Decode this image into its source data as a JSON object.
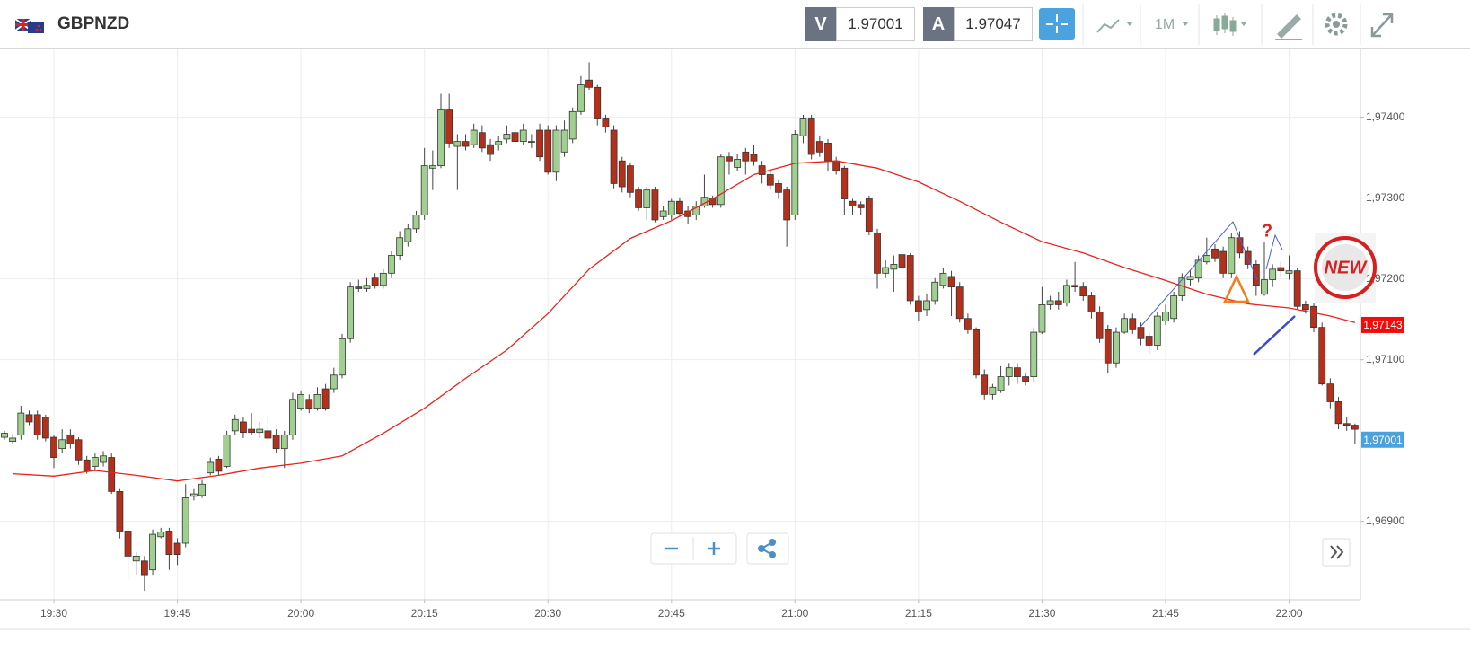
{
  "header": {
    "symbol": "GBPNZD",
    "sell_label": "V",
    "sell_price": "1.97001",
    "buy_label": "A",
    "buy_price": "1.97047",
    "timeframe": "1M"
  },
  "chart_data": {
    "type": "candlestick",
    "up_color": "#9fd08f",
    "down_color": "#b5301a",
    "categories": [
      "19:24",
      "19:25",
      "19:26",
      "19:27",
      "19:28",
      "19:29",
      "19:30",
      "19:31",
      "19:32",
      "19:33",
      "19:34",
      "19:35",
      "19:36",
      "19:37",
      "19:38",
      "19:39",
      "19:40",
      "19:41",
      "19:42",
      "19:43",
      "19:44",
      "19:45",
      "19:46",
      "19:47",
      "19:48",
      "19:49",
      "19:50",
      "19:51",
      "19:52",
      "19:53",
      "19:54",
      "19:55",
      "19:56",
      "19:57",
      "19:58",
      "19:59",
      "20:00",
      "20:01",
      "20:02",
      "20:03",
      "20:04",
      "20:05",
      "20:06",
      "20:07",
      "20:08",
      "20:09",
      "20:10",
      "20:11",
      "20:12",
      "20:13",
      "20:14",
      "20:15",
      "20:16",
      "20:17",
      "20:18",
      "20:19",
      "20:20",
      "20:21",
      "20:22",
      "20:23",
      "20:24",
      "20:25",
      "20:26",
      "20:27",
      "20:28",
      "20:29",
      "20:30",
      "20:31",
      "20:32",
      "20:33",
      "20:34",
      "20:35",
      "20:36",
      "20:37",
      "20:38",
      "20:39",
      "20:40",
      "20:41",
      "20:42",
      "20:43",
      "20:44",
      "20:45",
      "20:46",
      "20:47",
      "20:48",
      "20:49",
      "20:50",
      "20:51",
      "20:52",
      "20:53",
      "20:54",
      "20:55",
      "20:56",
      "20:57",
      "20:58",
      "20:59",
      "21:00",
      "21:01",
      "21:02",
      "21:03",
      "21:04",
      "21:05",
      "21:06",
      "21:07",
      "21:08",
      "21:09",
      "21:10",
      "21:11",
      "21:12",
      "21:13",
      "21:14",
      "21:15",
      "21:16",
      "21:17",
      "21:18",
      "21:19",
      "21:20",
      "21:21",
      "21:22",
      "21:23",
      "21:24",
      "21:25",
      "21:26",
      "21:27",
      "21:28",
      "21:29",
      "21:30",
      "21:31",
      "21:32",
      "21:33",
      "21:34",
      "21:35",
      "21:36",
      "21:37",
      "21:38",
      "21:39",
      "21:40",
      "21:41",
      "21:42",
      "21:43",
      "21:44",
      "21:45",
      "21:46",
      "21:47",
      "21:48",
      "21:49",
      "21:50",
      "21:51",
      "21:52",
      "21:53",
      "21:54",
      "21:55",
      "21:56",
      "21:57",
      "21:58",
      "21:59",
      "22:00",
      "22:01",
      "22:02",
      "22:03",
      "22:04",
      "22:05",
      "22:06",
      "22:07",
      "22:08"
    ],
    "candles": [
      [
        1.97004,
        1.97012,
        1.97001,
        1.97009
      ],
      [
        1.96999,
        1.97008,
        1.96996,
        1.97003
      ],
      [
        1.97007,
        1.97043,
        1.97001,
        1.97034
      ],
      [
        1.97032,
        1.97037,
        1.97019,
        1.97023
      ],
      [
        1.97032,
        1.97037,
        1.97001,
        1.97007
      ],
      [
        1.97029,
        1.97032,
        1.96999,
        1.97003
      ],
      [
        1.97004,
        1.97007,
        1.96966,
        1.96979
      ],
      [
        1.9699,
        1.97014,
        1.96984,
        1.97001
      ],
      [
        1.97007,
        1.97014,
        1.9699,
        1.96996
      ],
      [
        1.97001,
        1.97004,
        1.9697,
        1.96976
      ],
      [
        1.96976,
        1.96981,
        1.96959,
        1.96962
      ],
      [
        1.96968,
        1.96984,
        1.96962,
        1.96979
      ],
      [
        1.96973,
        1.96987,
        1.96968,
        1.96981
      ],
      [
        1.96979,
        1.96984,
        1.96934,
        1.96937
      ],
      [
        1.96937,
        1.9694,
        1.96879,
        1.96888
      ],
      [
        1.96888,
        1.96892,
        1.96829,
        1.96857
      ],
      [
        1.96851,
        1.96862,
        1.96834,
        1.96857
      ],
      [
        1.96851,
        1.96857,
        1.96814,
        1.96834
      ],
      [
        1.9684,
        1.9689,
        1.96834,
        1.96884
      ],
      [
        1.96881,
        1.96892,
        1.96879,
        1.96887
      ],
      [
        1.96888,
        1.96892,
        1.9684,
        1.96859
      ],
      [
        1.96873,
        1.96879,
        1.96846,
        1.96859
      ],
      [
        1.96873,
        1.96946,
        1.96868,
        1.96929
      ],
      [
        1.96931,
        1.9694,
        1.96926,
        1.96934
      ],
      [
        1.96932,
        1.96951,
        1.96929,
        1.96946
      ],
      [
        1.9696,
        1.96979,
        1.96957,
        1.96973
      ],
      [
        1.96977,
        1.96981,
        1.96957,
        1.96962
      ],
      [
        1.96968,
        1.97012,
        1.96966,
        1.97007
      ],
      [
        1.97012,
        1.97032,
        1.97007,
        1.97026
      ],
      [
        1.97023,
        1.97029,
        1.97003,
        1.9701
      ],
      [
        1.97014,
        1.97034,
        1.97007,
        1.9701
      ],
      [
        1.9701,
        1.97023,
        1.97003,
        1.97014
      ],
      [
        1.97012,
        1.97032,
        1.96999,
        1.97003
      ],
      [
        1.97007,
        1.97014,
        1.96984,
        1.9699
      ],
      [
        1.9699,
        1.97012,
        1.96966,
        1.97007
      ],
      [
        1.97007,
        1.97059,
        1.97001,
        1.97051
      ],
      [
        1.9704,
        1.97062,
        1.97037,
        1.97057
      ],
      [
        1.97051,
        1.97057,
        1.97034,
        1.9704
      ],
      [
        1.9704,
        1.97066,
        1.97037,
        1.97057
      ],
      [
        1.97064,
        1.9707,
        1.97037,
        1.9704
      ],
      [
        1.97064,
        1.9709,
        1.97059,
        1.97081
      ],
      [
        1.97081,
        1.97132,
        1.97077,
        1.97126
      ],
      [
        1.97126,
        1.97196,
        1.97121,
        1.9719
      ],
      [
        1.9719,
        1.97199,
        1.97184,
        1.97188
      ],
      [
        1.97188,
        1.97201,
        1.97184,
        1.97192
      ],
      [
        1.97201,
        1.97207,
        1.97188,
        1.97192
      ],
      [
        1.97192,
        1.97212,
        1.97188,
        1.97207
      ],
      [
        1.97207,
        1.97234,
        1.97201,
        1.97229
      ],
      [
        1.97229,
        1.97259,
        1.97223,
        1.97251
      ],
      [
        1.97246,
        1.97268,
        1.9724,
        1.97262
      ],
      [
        1.97262,
        1.97284,
        1.97257,
        1.97279
      ],
      [
        1.97279,
        1.97362,
        1.97273,
        1.9734
      ],
      [
        1.97337,
        1.97359,
        1.9731,
        1.9734
      ],
      [
        1.9734,
        1.97429,
        1.97337,
        1.9741
      ],
      [
        1.9741,
        1.97429,
        1.97362,
        1.97368
      ],
      [
        1.97364,
        1.97379,
        1.9731,
        1.9737
      ],
      [
        1.9737,
        1.97379,
        1.97359,
        1.97364
      ],
      [
        1.97366,
        1.97392,
        1.97362,
        1.97384
      ],
      [
        1.97381,
        1.9739,
        1.97357,
        1.97362
      ],
      [
        1.97366,
        1.97373,
        1.97346,
        1.97354
      ],
      [
        1.97366,
        1.97377,
        1.97359,
        1.9737
      ],
      [
        1.97373,
        1.9739,
        1.97368,
        1.97379
      ],
      [
        1.97381,
        1.9739,
        1.97366,
        1.9737
      ],
      [
        1.9737,
        1.97392,
        1.97366,
        1.97384
      ],
      [
        1.9737,
        1.97379,
        1.97362,
        1.9737
      ],
      [
        1.97384,
        1.97392,
        1.97346,
        1.97351
      ],
      [
        1.97384,
        1.9739,
        1.97329,
        1.97332
      ],
      [
        1.97332,
        1.9739,
        1.97321,
        1.97384
      ],
      [
        1.97357,
        1.97396,
        1.97351,
        1.97384
      ],
      [
        1.97373,
        1.97412,
        1.97368,
        1.97407
      ],
      [
        1.97407,
        1.97451,
        1.97403,
        1.9744
      ],
      [
        1.97446,
        1.97468,
        1.97434,
        1.97437
      ],
      [
        1.97437,
        1.9744,
        1.9739,
        1.97399
      ],
      [
        1.97399,
        1.97403,
        1.97381,
        1.97388
      ],
      [
        1.97384,
        1.9739,
        1.97312,
        1.97318
      ],
      [
        1.97346,
        1.97351,
        1.97307,
        1.97314
      ],
      [
        1.9734,
        1.97343,
        1.97301,
        1.97307
      ],
      [
        1.9731,
        1.97314,
        1.97284,
        1.97288
      ],
      [
        1.97288,
        1.97314,
        1.97273,
        1.9731
      ],
      [
        1.9731,
        1.97314,
        1.9727,
        1.97273
      ],
      [
        1.97277,
        1.9729,
        1.97273,
        1.97284
      ],
      [
        1.97279,
        1.97299,
        1.97273,
        1.97296
      ],
      [
        1.97296,
        1.97301,
        1.97277,
        1.97281
      ],
      [
        1.97284,
        1.9729,
        1.97268,
        1.97277
      ],
      [
        1.97279,
        1.97296,
        1.97273,
        1.9729
      ],
      [
        1.9729,
        1.97329,
        1.97288,
        1.97301
      ],
      [
        1.97299,
        1.97303,
        1.97288,
        1.97292
      ],
      [
        1.97292,
        1.97354,
        1.97288,
        1.97351
      ],
      [
        1.97351,
        1.97357,
        1.97329,
        1.97346
      ],
      [
        1.97338,
        1.97354,
        1.97334,
        1.97348
      ],
      [
        1.97357,
        1.97362,
        1.97329,
        1.97346
      ],
      [
        1.97354,
        1.97366,
        1.9734,
        1.97346
      ],
      [
        1.9734,
        1.97346,
        1.97318,
        1.97329
      ],
      [
        1.97329,
        1.97334,
        1.9731,
        1.97316
      ],
      [
        1.97318,
        1.97323,
        1.97299,
        1.97307
      ],
      [
        1.9731,
        1.97314,
        1.9724,
        1.97273
      ],
      [
        1.97279,
        1.97384,
        1.97273,
        1.97379
      ],
      [
        1.97377,
        1.97403,
        1.97368,
        1.97399
      ],
      [
        1.97399,
        1.97403,
        1.97348,
        1.97354
      ],
      [
        1.9737,
        1.97377,
        1.97351,
        1.97357
      ],
      [
        1.97368,
        1.97373,
        1.97334,
        1.97346
      ],
      [
        1.97346,
        1.97351,
        1.97329,
        1.97334
      ],
      [
        1.97337,
        1.9734,
        1.97279,
        1.97299
      ],
      [
        1.97296,
        1.97299,
        1.97279,
        1.9729
      ],
      [
        1.97292,
        1.97296,
        1.97279,
        1.97288
      ],
      [
        1.97299,
        1.97303,
        1.97254,
        1.97259
      ],
      [
        1.97257,
        1.97262,
        1.97188,
        1.97207
      ],
      [
        1.97207,
        1.97223,
        1.97201,
        1.97214
      ],
      [
        1.97212,
        1.97229,
        1.97184,
        1.97218
      ],
      [
        1.9723,
        1.97234,
        1.97207,
        1.97214
      ],
      [
        1.97229,
        1.97232,
        1.97168,
        1.97173
      ],
      [
        1.97173,
        1.97179,
        1.97148,
        1.97159
      ],
      [
        1.97162,
        1.97182,
        1.97154,
        1.97173
      ],
      [
        1.97173,
        1.97201,
        1.97168,
        1.97196
      ],
      [
        1.97192,
        1.97214,
        1.97188,
        1.97207
      ],
      [
        1.97203,
        1.9721,
        1.97154,
        1.9719
      ],
      [
        1.9719,
        1.97196,
        1.97146,
        1.97151
      ],
      [
        1.97151,
        1.97157,
        1.97132,
        1.97137
      ],
      [
        1.97137,
        1.9714,
        1.97077,
        1.97081
      ],
      [
        1.97081,
        1.97088,
        1.97051,
        1.97057
      ],
      [
        1.97057,
        1.9707,
        1.97051,
        1.97066
      ],
      [
        1.97062,
        1.97092,
        1.97059,
        1.97079
      ],
      [
        1.97079,
        1.97096,
        1.97068,
        1.9709
      ],
      [
        1.9709,
        1.97096,
        1.9707,
        1.97079
      ],
      [
        1.97079,
        1.97084,
        1.97068,
        1.97073
      ],
      [
        1.97079,
        1.9714,
        1.97073,
        1.97134
      ],
      [
        1.97134,
        1.9719,
        1.97132,
        1.97168
      ],
      [
        1.97168,
        1.97179,
        1.97162,
        1.97173
      ],
      [
        1.97173,
        1.97184,
        1.97162,
        1.97168
      ],
      [
        1.9717,
        1.97199,
        1.97166,
        1.97192
      ],
      [
        1.97192,
        1.97221,
        1.97184,
        1.9719
      ],
      [
        1.9719,
        1.97196,
        1.97173,
        1.97179
      ],
      [
        1.97179,
        1.97184,
        1.97151,
        1.97159
      ],
      [
        1.97159,
        1.97166,
        1.97121,
        1.97126
      ],
      [
        1.97137,
        1.97143,
        1.97084,
        1.97096
      ],
      [
        1.97096,
        1.9714,
        1.9709,
        1.97134
      ],
      [
        1.97134,
        1.97157,
        1.97132,
        1.97151
      ],
      [
        1.97151,
        1.97157,
        1.97132,
        1.97137
      ],
      [
        1.9714,
        1.97146,
        1.97118,
        1.97126
      ],
      [
        1.97129,
        1.97134,
        1.97107,
        1.97118
      ],
      [
        1.97118,
        1.97159,
        1.97112,
        1.97154
      ],
      [
        1.97148,
        1.97168,
        1.97143,
        1.97159
      ],
      [
        1.97151,
        1.97184,
        1.97146,
        1.97179
      ],
      [
        1.97179,
        1.97207,
        1.97173,
        1.97201
      ],
      [
        1.97199,
        1.9721,
        1.97192,
        1.97203
      ],
      [
        1.97201,
        1.97229,
        1.97196,
        1.97223
      ],
      [
        1.97221,
        1.97251,
        1.97218,
        1.97229
      ],
      [
        1.97237,
        1.97243,
        1.97221,
        1.97226
      ],
      [
        1.97234,
        1.9724,
        1.97201,
        1.97207
      ],
      [
        1.97207,
        1.97257,
        1.97201,
        1.97251
      ],
      [
        1.97251,
        1.97259,
        1.97226,
        1.97232
      ],
      [
        1.97234,
        1.9724,
        1.97212,
        1.97218
      ],
      [
        1.97218,
        1.97223,
        1.97179,
        1.97192
      ],
      [
        1.97181,
        1.97246,
        1.97179,
        1.97199
      ],
      [
        1.97199,
        1.97218,
        1.9719,
        1.97212
      ],
      [
        1.97214,
        1.97221,
        1.97203,
        1.9721
      ],
      [
        1.97207,
        1.97229,
        1.97199,
        1.9721
      ],
      [
        1.9721,
        1.97214,
        1.97162,
        1.97166
      ],
      [
        1.97168,
        1.97173,
        1.97157,
        1.97162
      ],
      [
        1.97166,
        1.9717,
        1.97134,
        1.9714
      ],
      [
        1.9714,
        1.97146,
        1.97068,
        1.9707
      ],
      [
        1.9707,
        1.97077,
        1.9704,
        1.97048
      ],
      [
        1.97048,
        1.97054,
        1.97014,
        1.97021
      ],
      [
        1.97021,
        1.97029,
        1.97012,
        1.97019
      ],
      [
        1.97019,
        1.97021,
        1.96996,
        1.97014
      ]
    ],
    "lines": [
      {
        "color": "#e8231c",
        "x": [
          "19:25",
          "19:30",
          "19:35",
          "19:40",
          "19:45",
          "19:50",
          "19:55",
          "20:00",
          "20:05",
          "20:10",
          "20:15",
          "20:20",
          "20:25",
          "20:30",
          "20:35",
          "20:40",
          "20:45",
          "20:50",
          "20:55",
          "21:00",
          "21:05",
          "21:10",
          "21:15",
          "21:20",
          "21:25",
          "21:30",
          "21:35",
          "21:40",
          "21:45",
          "21:50",
          "21:55",
          "22:00",
          "22:05",
          "22:08"
        ],
        "values": [
          1.96959,
          1.96956,
          1.96963,
          1.96957,
          1.9695,
          1.96957,
          1.96966,
          1.96972,
          1.96981,
          1.97009,
          1.9704,
          1.97077,
          1.97112,
          1.97157,
          1.97212,
          1.9725,
          1.97272,
          1.97299,
          1.97329,
          1.97343,
          1.97346,
          1.97337,
          1.9732,
          1.97296,
          1.9727,
          1.97246,
          1.97232,
          1.97214,
          1.97198,
          1.97181,
          1.97169,
          1.97164,
          1.97154,
          1.97146
        ]
      }
    ],
    "ylim": [
      1.96803,
      1.97484
    ],
    "yticks": [
      {
        "value": 1.974,
        "label": "1,97400"
      },
      {
        "value": 1.973,
        "label": "1,97300"
      },
      {
        "value": 1.972,
        "label": "1,97200"
      },
      {
        "value": 1.971,
        "label": "1,97100"
      },
      {
        "value": 1.969,
        "label": "1,96900"
      }
    ],
    "xticks": [
      "19:30",
      "19:45",
      "20:00",
      "20:15",
      "20:30",
      "20:45",
      "21:00",
      "21:15",
      "21:30",
      "21:45",
      "22:00"
    ],
    "grid": true,
    "price_labels": [
      {
        "value": 1.97143,
        "label": "1,97143",
        "color": "#f20d0d"
      },
      {
        "value": 1.97001,
        "label": "1,97001",
        "color": "#4aa3df"
      }
    ],
    "annotation": "?",
    "badge": "NEW"
  }
}
